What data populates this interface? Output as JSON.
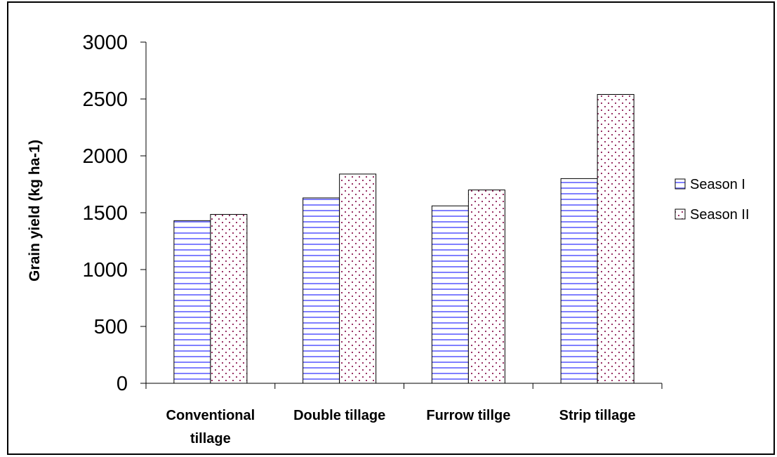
{
  "chart_data": {
    "type": "bar",
    "title": "",
    "xlabel": "",
    "ylabel": "Grain yield (kg ha-1)",
    "ylim": [
      0,
      3000
    ],
    "yticks": [
      "0",
      "500",
      "1000",
      "1500",
      "2000",
      "2500",
      "3000"
    ],
    "categories": [
      [
        "Conventional",
        "tillage"
      ],
      [
        "Double tillage"
      ],
      [
        "Furrow tillge"
      ],
      [
        "Strip tillage"
      ]
    ],
    "series": [
      {
        "name": "Season I",
        "values": [
          1430,
          1630,
          1560,
          1800
        ],
        "pattern": "horizontal-stripes",
        "color": "#8080ff"
      },
      {
        "name": "Season II",
        "values": [
          1485,
          1840,
          1700,
          2540
        ],
        "pattern": "dots",
        "color": "#993366"
      }
    ],
    "grid": false,
    "legend": "right"
  }
}
